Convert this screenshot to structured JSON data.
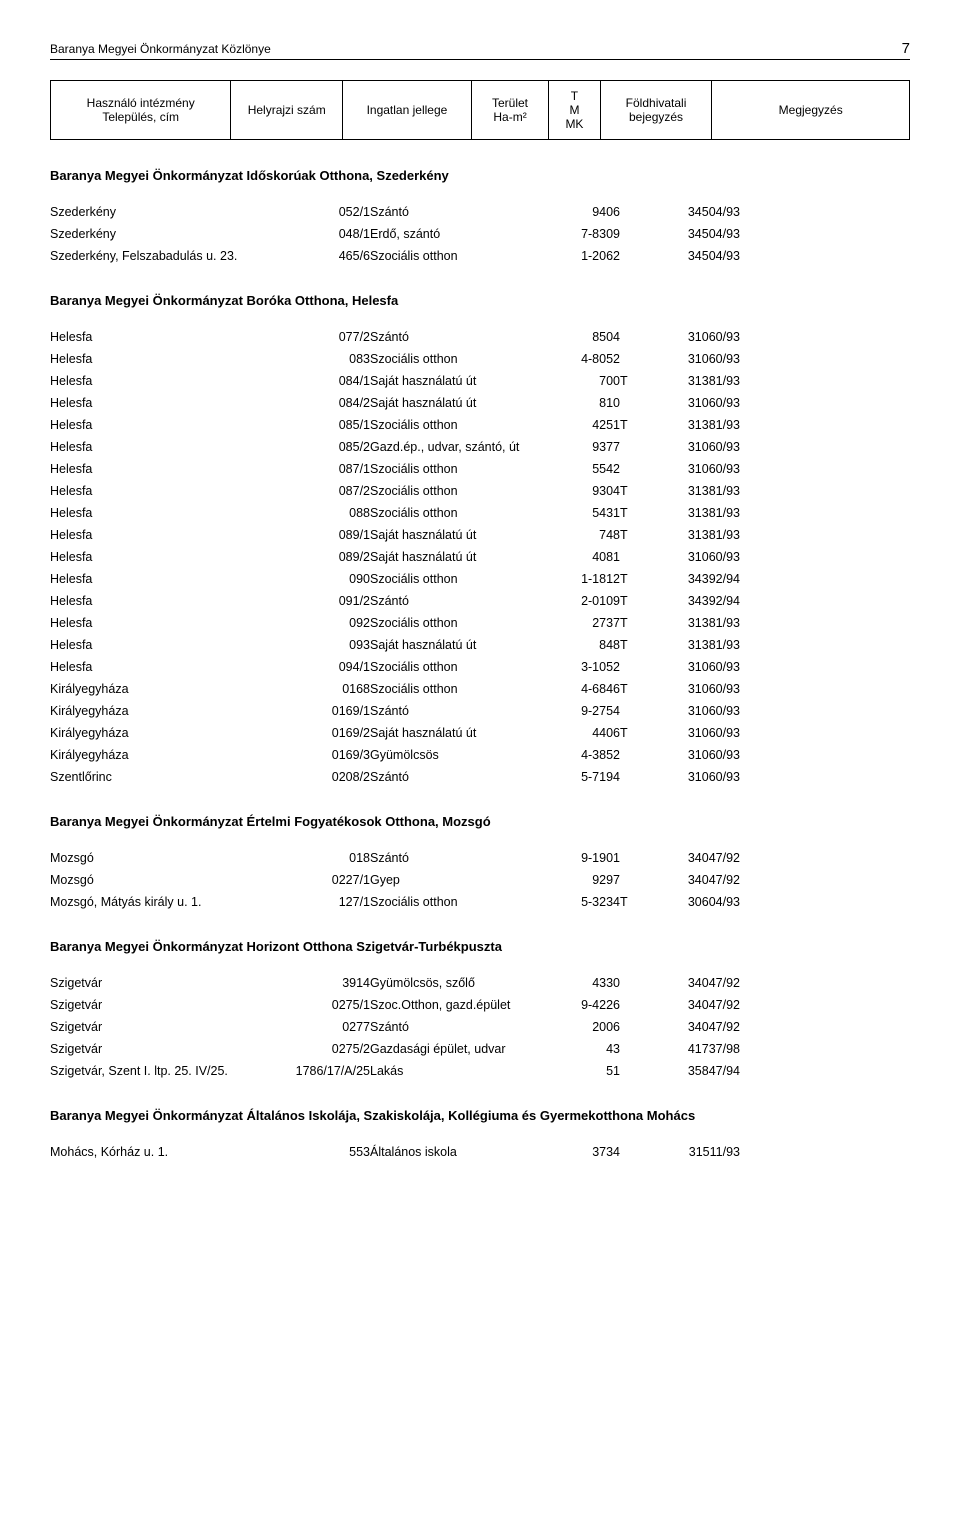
{
  "header": {
    "title": "Baranya Megyei Önkormányzat Közlönye",
    "page": "7"
  },
  "columnHeader": {
    "c1": "Használó intézmény\nTelepülés, cím",
    "c2": "Helyrajzi szám",
    "c3": "Ingatlan jellege",
    "c4": "Terület\nHa-m²",
    "c5": "T\nM\nMK",
    "c6": "Földhivatali\nbejegyzés",
    "c7": "Megjegyzés"
  },
  "sections": [
    {
      "title": "Baranya Megyei Önkormányzat Időskorúak Otthona, Szederkény",
      "rows": [
        {
          "c1": "Szederkény",
          "c2": "052/1",
          "c3": "Szántó",
          "c4": "9406",
          "c5": "",
          "c6": "34504/93"
        },
        {
          "c1": "Szederkény",
          "c2": "048/1",
          "c3": "Erdő, szántó",
          "c4": "7-8309",
          "c5": "",
          "c6": "34504/93"
        },
        {
          "c1": "Szederkény, Felszabadulás u. 23.",
          "c2": "465/6",
          "c3": "Szociális otthon",
          "c4": "1-2062",
          "c5": "",
          "c6": "34504/93"
        }
      ]
    },
    {
      "title": "Baranya Megyei Önkormányzat Boróka Otthona, Helesfa",
      "rows": [
        {
          "c1": "Helesfa",
          "c2": "077/2",
          "c3": "Szántó",
          "c4": "8504",
          "c5": "",
          "c6": "31060/93"
        },
        {
          "c1": "Helesfa",
          "c2": "083",
          "c3": "Szociális otthon",
          "c4": "4-8052",
          "c5": "",
          "c6": "31060/93"
        },
        {
          "c1": "Helesfa",
          "c2": "084/1",
          "c3": "Saját használatú út",
          "c4": "700",
          "c5": "T",
          "c6": "31381/93"
        },
        {
          "c1": "Helesfa",
          "c2": "084/2",
          "c3": "Saját használatú út",
          "c4": "810",
          "c5": "",
          "c6": "31060/93"
        },
        {
          "c1": "Helesfa",
          "c2": "085/1",
          "c3": "Szociális otthon",
          "c4": "4251",
          "c5": "T",
          "c6": "31381/93"
        },
        {
          "c1": "Helesfa",
          "c2": "085/2",
          "c3": "Gazd.ép., udvar, szántó, út",
          "c4": "9377",
          "c5": "",
          "c6": "31060/93"
        },
        {
          "c1": "Helesfa",
          "c2": "087/1",
          "c3": "Szociális otthon",
          "c4": "5542",
          "c5": "",
          "c6": "31060/93"
        },
        {
          "c1": "Helesfa",
          "c2": "087/2",
          "c3": "Szociális otthon",
          "c4": "9304",
          "c5": "T",
          "c6": "31381/93"
        },
        {
          "c1": "Helesfa",
          "c2": "088",
          "c3": "Szociális otthon",
          "c4": "5431",
          "c5": "T",
          "c6": "31381/93"
        },
        {
          "c1": "Helesfa",
          "c2": "089/1",
          "c3": "Saját használatú út",
          "c4": "748",
          "c5": "T",
          "c6": "31381/93"
        },
        {
          "c1": "Helesfa",
          "c2": "089/2",
          "c3": "Saját használatú út",
          "c4": "4081",
          "c5": "",
          "c6": "31060/93"
        },
        {
          "c1": "Helesfa",
          "c2": "090",
          "c3": "Szociális otthon",
          "c4": "1-1812",
          "c5": "T",
          "c6": "34392/94"
        },
        {
          "c1": "Helesfa",
          "c2": "091/2",
          "c3": "Szántó",
          "c4": "2-0109",
          "c5": "T",
          "c6": "34392/94"
        },
        {
          "c1": "Helesfa",
          "c2": "092",
          "c3": "Szociális otthon",
          "c4": "2737",
          "c5": "T",
          "c6": "31381/93"
        },
        {
          "c1": "Helesfa",
          "c2": "093",
          "c3": "Saját használatú út",
          "c4": "848",
          "c5": "T",
          "c6": "31381/93"
        },
        {
          "c1": "Helesfa",
          "c2": "094/1",
          "c3": "Szociális otthon",
          "c4": "3-1052",
          "c5": "",
          "c6": "31060/93"
        },
        {
          "c1": "Királyegyháza",
          "c2": "0168",
          "c3": "Szociális otthon",
          "c4": "4-6846",
          "c5": "T",
          "c6": "31060/93"
        },
        {
          "c1": "Királyegyháza",
          "c2": "0169/1",
          "c3": "Szántó",
          "c4": "9-2754",
          "c5": "",
          "c6": "31060/93"
        },
        {
          "c1": "Királyegyháza",
          "c2": "0169/2",
          "c3": "Saját használatú út",
          "c4": "4406",
          "c5": "T",
          "c6": "31060/93"
        },
        {
          "c1": "Királyegyháza",
          "c2": "0169/3",
          "c3": "Gyümölcsös",
          "c4": "4-3852",
          "c5": "",
          "c6": "31060/93"
        },
        {
          "c1": "Szentlőrinc",
          "c2": "0208/2",
          "c3": "Szántó",
          "c4": "5-7194",
          "c5": "",
          "c6": "31060/93"
        }
      ]
    },
    {
      "title": "Baranya Megyei Önkormányzat Értelmi Fogyatékosok Otthona, Mozsgó",
      "rows": [
        {
          "c1": "Mozsgó",
          "c2": "018",
          "c3": "Szántó",
          "c4": "9-1901",
          "c5": "",
          "c6": "34047/92"
        },
        {
          "c1": "Mozsgó",
          "c2": "0227/1",
          "c3": "Gyep",
          "c4": "9297",
          "c5": "",
          "c6": "34047/92"
        },
        {
          "c1": "Mozsgó, Mátyás király u. 1.",
          "c2": "127/1",
          "c3": "Szociális otthon",
          "c4": "5-3234",
          "c5": "T",
          "c6": "30604/93"
        }
      ]
    },
    {
      "title": "Baranya Megyei Önkormányzat Horizont Otthona Szigetvár-Turbékpuszta",
      "rows": [
        {
          "c1": "Szigetvár",
          "c2": "3914",
          "c3": "Gyümölcsös, szőlő",
          "c4": "4330",
          "c5": "",
          "c6": "34047/92"
        },
        {
          "c1": "Szigetvár",
          "c2": "0275/1",
          "c3": "Szoc.Otthon, gazd.épület",
          "c4": "9-4226",
          "c5": "",
          "c6": "34047/92"
        },
        {
          "c1": "Szigetvár",
          "c2": "0277",
          "c3": "Szántó",
          "c4": "2006",
          "c5": "",
          "c6": "34047/92"
        },
        {
          "c1": "Szigetvár",
          "c2": "0275/2",
          "c3": "Gazdasági épület, udvar",
          "c4": "43",
          "c5": "",
          "c6": "41737/98"
        },
        {
          "c1": "Szigetvár, Szent I. ltp. 25. IV/25.",
          "c2": "1786/17/A/25",
          "c3": "Lakás",
          "c4": "51",
          "c5": "",
          "c6": "35847/94"
        }
      ]
    },
    {
      "title": "Baranya Megyei Önkormányzat Általános Iskolája, Szakiskolája, Kollégiuma és Gyermekotthona Mohács",
      "rows": [
        {
          "c1": "Mohács, Kórház u. 1.",
          "c2": "553",
          "c3": "Általános iskola",
          "c4": "3734",
          "c5": "",
          "c6": "31511/93"
        }
      ]
    }
  ]
}
